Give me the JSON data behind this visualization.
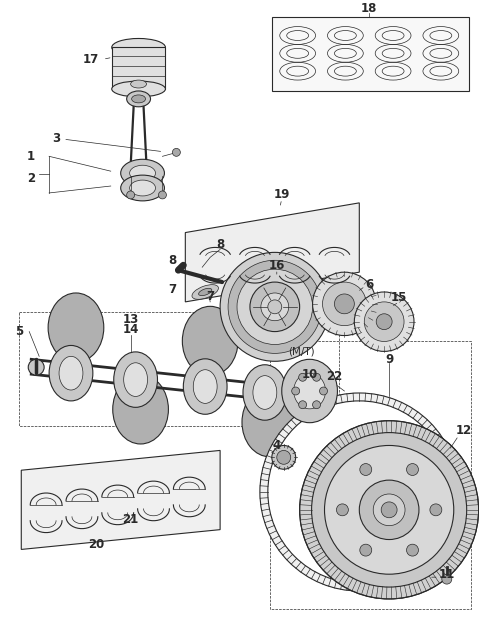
{
  "bg_color": "#ffffff",
  "fig_width": 4.8,
  "fig_height": 6.35,
  "dpi": 100,
  "line_color": "#2a2a2a",
  "label_fontsize": 8.5,
  "mt_fontsize": 7.5,
  "gray_light": "#e0e0e0",
  "gray_mid": "#c8c8c8",
  "gray_dark": "#a8a8a8"
}
